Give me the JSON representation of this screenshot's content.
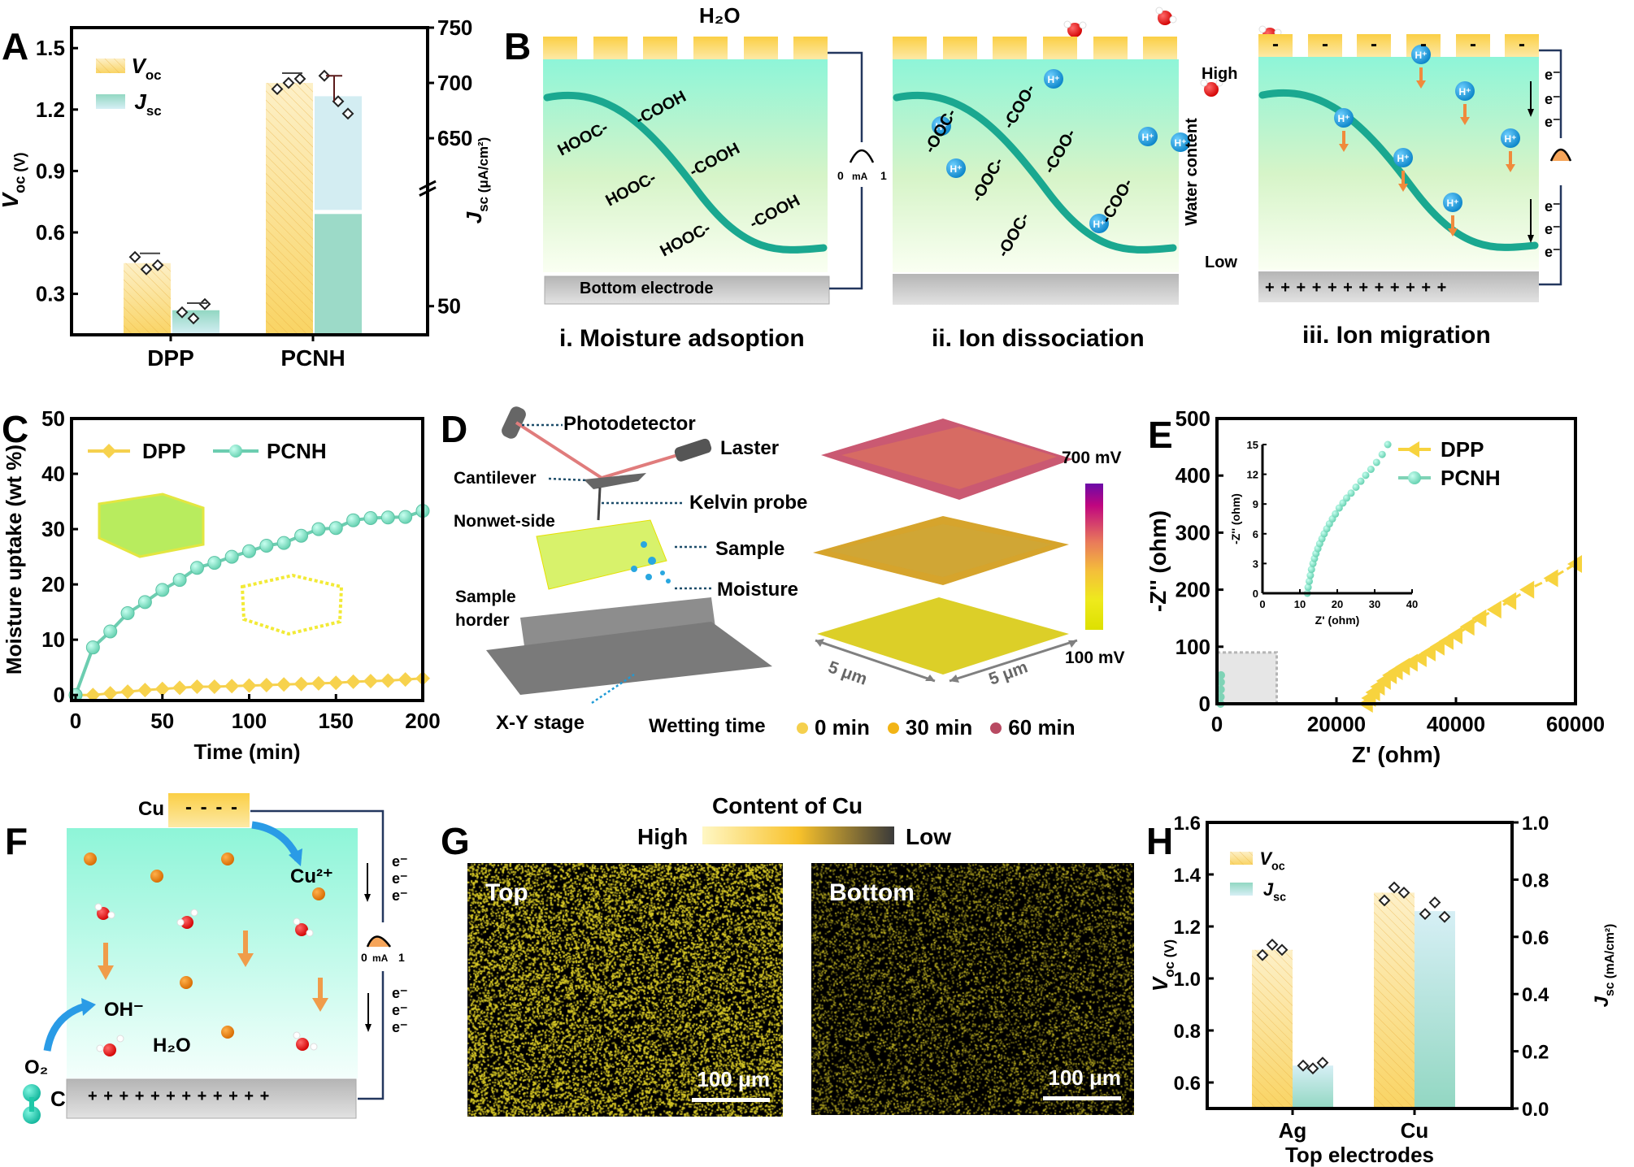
{
  "panels": {
    "A": {
      "label": "A"
    },
    "B": {
      "label": "B",
      "h2o_label": "H₂O",
      "meter": {
        "min": "0",
        "unit": "mA",
        "max": "1"
      },
      "stage_i": {
        "caption": "i. Moisture adsoption",
        "bottom_electrode": "Bottom electrode",
        "groups_left": [
          "HOOC-",
          "HOOC-",
          "HOOC-"
        ],
        "groups_right": [
          "-COOH",
          "-COOH",
          "-COOH"
        ]
      },
      "stage_ii": {
        "caption": "ii. Ion dissociation",
        "groups_left": [
          "-OOC-",
          "-OOC-",
          "-OOC-"
        ],
        "groups_right": [
          "-COO-",
          "-COO-",
          "-COO-"
        ],
        "ion": "H⁺"
      },
      "stage_iii": {
        "caption": "iii. Ion  migration",
        "plus_signs": "+ + + + + + + + + + + +",
        "minus_sign": "-",
        "electron": "e⁻"
      },
      "water_bar": {
        "high": "High",
        "low": "Low",
        "title": "Water content"
      }
    },
    "C": {
      "label": "C"
    },
    "D": {
      "label": "D",
      "parts": [
        "Photodetector",
        "Laster",
        "Cantilever",
        "Kelvin probe",
        "Nonwet-side",
        "Sample",
        "Moisture",
        "Sample\nhorder",
        "X-Y stage"
      ],
      "scale_max": "700 mV",
      "scale_min": "100 mV",
      "dim_x": "5 μm",
      "dim_y": "5 μm",
      "wetting_label": "Wetting time",
      "wetting_legend": [
        {
          "label": "0 min",
          "color": "#f5d04e"
        },
        {
          "label": "30 min",
          "color": "#f2b416"
        },
        {
          "label": "60 min",
          "color": "#b84a62"
        }
      ]
    },
    "E": {
      "label": "E"
    },
    "F": {
      "label": "F",
      "cu": "Cu",
      "cu_minus": "- - - -",
      "cu_ion": "Cu²⁺",
      "oh": "OH⁻",
      "h2o": "H₂O",
      "o2": "O₂",
      "c": "C",
      "plus_signs": "+ + + + + + + + + + + +",
      "electron": "e⁻",
      "meter": {
        "min": "0",
        "unit": "mA",
        "max": "1"
      }
    },
    "G": {
      "label": "G",
      "title": "Content of Cu",
      "high": "High",
      "low": "Low",
      "images": [
        {
          "label": "Top",
          "scale": "100 μm"
        },
        {
          "label": "Bottom",
          "scale": "100 μm"
        }
      ]
    },
    "H": {
      "label": "H"
    }
  },
  "colors": {
    "voc": "#f8d466",
    "jsc": "#8fd6c2",
    "jsc_light": "#d3eef2",
    "dpp": "#f7d33e",
    "pcnh": "#7fd3b6"
  },
  "chart_data": [
    {
      "id": "A",
      "type": "bar",
      "categories": [
        "DPP",
        "PCNH"
      ],
      "series": [
        {
          "name": "Voc",
          "axis": "left",
          "values": [
            0.45,
            1.33
          ],
          "points": [
            [
              0.48,
              0.42,
              0.44
            ],
            [
              1.3,
              1.33,
              1.35
            ]
          ]
        },
        {
          "name": "Jsc",
          "axis": "right",
          "values": [
            47,
            695
          ],
          "points": [
            [
              49,
              45,
              51
            ],
            [
              712,
              690,
              680
            ]
          ]
        }
      ],
      "legend": [
        "V_oc",
        "J_sc"
      ],
      "ylabel": "V_oc (V)",
      "y2label": "J_sc (μA/cm²)",
      "ylim": [
        0.1,
        1.6
      ],
      "yticks": [
        "0.3",
        "0.6",
        "0.9",
        "1.2",
        "1.5"
      ],
      "y2ticks": [
        "50",
        "650",
        "700",
        "750"
      ],
      "y2_break": true
    },
    {
      "id": "C",
      "type": "line",
      "xlabel": "Time (min)",
      "ylabel": "Moisture uptake (wt %)",
      "xlim": [
        0,
        200
      ],
      "ylim": [
        -1,
        50
      ],
      "xticks": [
        "0",
        "50",
        "100",
        "150",
        "200"
      ],
      "yticks": [
        "0",
        "10",
        "20",
        "30",
        "40",
        "50"
      ],
      "x": [
        0,
        10,
        20,
        30,
        40,
        50,
        60,
        70,
        80,
        90,
        100,
        110,
        120,
        130,
        140,
        150,
        160,
        170,
        180,
        190,
        200
      ],
      "series": [
        {
          "name": "DPP",
          "marker": "diamond",
          "values": [
            0,
            0,
            0.3,
            0.6,
            0.9,
            1.1,
            1.3,
            1.5,
            1.5,
            1.6,
            1.7,
            1.8,
            1.9,
            2.0,
            2.1,
            2.2,
            2.4,
            2.5,
            2.6,
            2.8,
            3.0
          ]
        },
        {
          "name": "PCNH",
          "marker": "circle",
          "values": [
            0,
            8.6,
            11.5,
            14.8,
            16.8,
            19.0,
            20.8,
            23.0,
            23.9,
            25.0,
            26.0,
            27.0,
            27.5,
            28.8,
            30.0,
            30.2,
            31.6,
            32.0,
            32.1,
            32.2,
            33.3
          ]
        }
      ],
      "legend": [
        "DPP",
        "PCNH"
      ]
    },
    {
      "id": "E",
      "type": "scatter",
      "xlabel": "Z' (ohm)",
      "ylabel": "-Z'' (ohm)",
      "xlim": [
        0,
        60000
      ],
      "ylim": [
        0,
        500
      ],
      "xticks": [
        "0",
        "20000",
        "40000",
        "60000"
      ],
      "yticks": [
        "0",
        "100",
        "200",
        "300",
        "400",
        "500"
      ],
      "series": [
        {
          "name": "DPP",
          "marker": "triangle-left",
          "x": [
            25000,
            25500,
            26200,
            27000,
            28000,
            29000,
            30000,
            31200,
            32500,
            34000,
            35500,
            37000,
            38500,
            40000,
            42000,
            44000,
            46500,
            49000,
            52000,
            56000,
            60000
          ],
          "y": [
            0,
            10,
            20,
            30,
            40,
            50,
            57,
            65,
            72,
            80,
            90,
            100,
            110,
            120,
            135,
            150,
            165,
            180,
            200,
            220,
            245
          ]
        },
        {
          "name": "PCNH",
          "marker": "circle",
          "x": [
            600,
            620,
            640,
            660,
            680
          ],
          "y": [
            0,
            12,
            25,
            38,
            50
          ]
        }
      ],
      "inset": {
        "xlabel": "Z' (ohm)",
        "ylabel": "-Z'' (ohm)",
        "xlim": [
          0,
          40
        ],
        "ylim": [
          0,
          15
        ],
        "xticks": [
          "0",
          "10",
          "20",
          "30",
          "40"
        ],
        "yticks": [
          "0",
          "3",
          "6",
          "9",
          "12",
          "15"
        ],
        "series": [
          {
            "name": "PCNH",
            "x": [
              12,
              12.2,
              12.5,
              12.8,
              13.1,
              13.5,
              13.9,
              14.3,
              14.8,
              15.3,
              15.9,
              16.5,
              17.2,
              17.9,
              18.7,
              19.5,
              20.5,
              21.5,
              22.5,
              23.7,
              25,
              26.3,
              27.6,
              29,
              30.5,
              32,
              33.5
            ],
            "y": [
              0,
              0.6,
              1.2,
              1.8,
              2.4,
              3.0,
              3.5,
              4.0,
              4.5,
              5.0,
              5.5,
              6.0,
              6.5,
              7.0,
              7.5,
              8.0,
              8.6,
              9.1,
              9.6,
              10.1,
              10.7,
              11.3,
              11.9,
              12.5,
              13.2,
              14.0,
              15.0
            ]
          }
        ]
      },
      "legend": [
        "DPP",
        "PCNH"
      ],
      "zoom_box": {
        "x": [
          0,
          10000
        ],
        "y": [
          0,
          90
        ]
      }
    },
    {
      "id": "H",
      "type": "bar",
      "categories": [
        "Ag",
        "Cu"
      ],
      "series": [
        {
          "name": "Voc",
          "axis": "left",
          "values": [
            1.11,
            1.33
          ],
          "points": [
            [
              1.09,
              1.13,
              1.11
            ],
            [
              1.3,
              1.35,
              1.33
            ]
          ]
        },
        {
          "name": "Jsc",
          "axis": "right",
          "values": [
            0.15,
            0.69
          ],
          "points": [
            [
              0.15,
              0.14,
              0.16
            ],
            [
              0.68,
              0.72,
              0.67
            ]
          ]
        }
      ],
      "legend": [
        "V_oc",
        "J_sc"
      ],
      "xlabel": "Top electrodes",
      "ylabel": "V_oc (V)",
      "y2label": "J_sc (mA/cm²)",
      "ylim": [
        0.5,
        1.6
      ],
      "y2lim": [
        0,
        1.0
      ],
      "yticks": [
        "0.6",
        "0.8",
        "1.0",
        "1.2",
        "1.4",
        "1.6"
      ],
      "y2ticks": [
        "0.0",
        "0.2",
        "0.4",
        "0.6",
        "0.8",
        "1.0"
      ]
    }
  ]
}
